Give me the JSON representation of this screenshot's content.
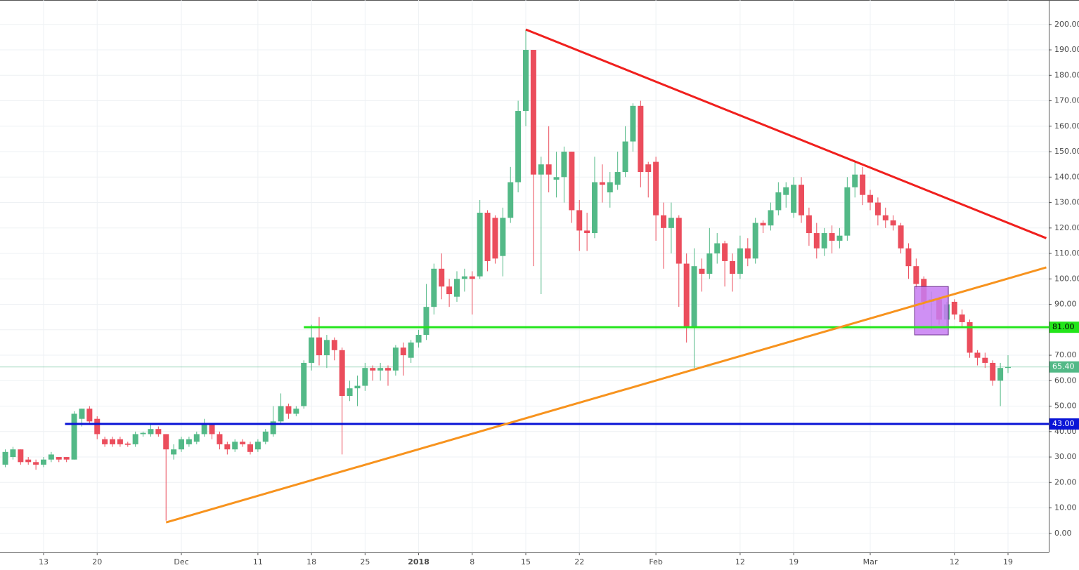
{
  "chart_data": {
    "type": "candlestick",
    "up_color": "#53b987",
    "down_color": "#eb4d5c",
    "grid": true,
    "ylim": [
      -7.5,
      209.6
    ],
    "yticks": [
      {
        "value": 0,
        "label": "0.00"
      },
      {
        "value": 10,
        "label": "10.00"
      },
      {
        "value": 20,
        "label": "20.00"
      },
      {
        "value": 30,
        "label": "30.00"
      },
      {
        "value": 40,
        "label": "40.00"
      },
      {
        "value": 50,
        "label": "50.00"
      },
      {
        "value": 60,
        "label": "60.00"
      },
      {
        "value": 70,
        "label": "70.00"
      },
      {
        "value": 80,
        "label": "80.00"
      },
      {
        "value": 90,
        "label": "90.00"
      },
      {
        "value": 100,
        "label": "100.00"
      },
      {
        "value": 110,
        "label": "110.00"
      },
      {
        "value": 120,
        "label": "120.00"
      },
      {
        "value": 130,
        "label": "130.00"
      },
      {
        "value": 140,
        "label": "140.00"
      },
      {
        "value": 150,
        "label": "150.00"
      },
      {
        "value": 160,
        "label": "160.00"
      },
      {
        "value": 170,
        "label": "170.00"
      },
      {
        "value": 180,
        "label": "180.00"
      },
      {
        "value": 190,
        "label": "190.00"
      },
      {
        "value": 200,
        "label": "200.00"
      }
    ],
    "categories": [
      null,
      null,
      null,
      null,
      null,
      "13",
      null,
      null,
      null,
      null,
      null,
      null,
      "20",
      null,
      null,
      null,
      null,
      null,
      null,
      null,
      null,
      null,
      null,
      "Dec",
      null,
      null,
      null,
      null,
      null,
      null,
      null,
      null,
      null,
      "11",
      null,
      null,
      null,
      null,
      null,
      null,
      "18",
      null,
      null,
      null,
      null,
      null,
      null,
      "25",
      null,
      null,
      null,
      null,
      null,
      null,
      "2018",
      null,
      null,
      null,
      null,
      null,
      null,
      "8",
      null,
      null,
      null,
      null,
      null,
      null,
      "15",
      null,
      null,
      null,
      null,
      null,
      null,
      "22",
      null,
      null,
      null,
      null,
      null,
      null,
      null,
      null,
      null,
      "Feb",
      null,
      null,
      null,
      null,
      null,
      null,
      null,
      null,
      null,
      null,
      "12",
      null,
      null,
      null,
      null,
      null,
      null,
      "19",
      null,
      null,
      null,
      null,
      null,
      null,
      null,
      null,
      null,
      "Mar",
      null,
      null,
      null,
      null,
      null,
      null,
      null,
      null,
      null,
      null,
      "12",
      null,
      null,
      null,
      null,
      null,
      null,
      "19"
    ],
    "open": [
      27,
      30,
      33,
      29,
      28,
      27,
      29,
      30,
      30,
      29,
      45,
      49,
      45,
      37,
      37,
      37,
      35.3,
      35,
      39,
      39,
      41,
      39,
      31,
      33,
      35,
      36,
      39,
      43,
      39,
      35,
      33,
      36,
      35,
      33,
      36,
      39,
      44,
      50,
      47,
      50,
      67,
      77,
      70,
      76,
      72,
      54,
      57,
      58,
      65,
      64,
      65,
      64,
      73,
      69,
      75,
      78,
      89,
      104,
      97,
      93,
      100,
      101,
      101,
      126,
      124,
      109,
      124,
      138,
      166,
      190,
      141,
      145,
      139,
      140,
      150,
      127,
      119,
      118,
      138,
      134,
      137,
      142,
      154,
      168,
      145,
      146,
      125,
      120,
      124,
      106,
      81,
      104,
      102,
      110,
      114,
      107,
      102,
      112,
      108,
      122,
      121,
      127,
      133,
      126,
      137,
      125,
      118,
      112,
      118,
      115,
      117,
      136,
      141,
      133,
      130,
      125,
      123,
      121,
      112,
      105,
      100,
      91,
      92,
      84,
      91,
      86,
      83,
      71,
      69,
      67,
      60,
      65
    ],
    "high": [
      33,
      34,
      33,
      30,
      29,
      30,
      32,
      30,
      30,
      48,
      49,
      50,
      46,
      38,
      38,
      38,
      36,
      40,
      40,
      43,
      42,
      39,
      35,
      38,
      38,
      40,
      45,
      43,
      40,
      36,
      37,
      37,
      36,
      37,
      41,
      50,
      55,
      51,
      50,
      68,
      82,
      85,
      78,
      77,
      73,
      60,
      62,
      67,
      66,
      67,
      66,
      74,
      75,
      76,
      80,
      98,
      106,
      110,
      100,
      103,
      104,
      103,
      131,
      127,
      125,
      128,
      144,
      170,
      198,
      190,
      148,
      160,
      150,
      152,
      150,
      131,
      126,
      148,
      145,
      142,
      150,
      160,
      169,
      170,
      146,
      148,
      130,
      130,
      125,
      110,
      112,
      108,
      120,
      118,
      115,
      110,
      117,
      116,
      124,
      123,
      130,
      138,
      138,
      140,
      140,
      128,
      122,
      120,
      121,
      120,
      140,
      146,
      144,
      135,
      132,
      128,
      125,
      122,
      114,
      108,
      101,
      95,
      93,
      91,
      92,
      88,
      84,
      72,
      71,
      68,
      67,
      70
    ],
    "low": [
      26,
      29,
      27,
      27,
      25,
      26,
      28,
      28,
      28,
      29,
      42,
      43,
      37,
      34,
      34,
      34,
      34,
      34,
      38,
      38,
      38,
      5,
      29,
      32,
      34,
      35,
      38,
      37,
      33,
      31,
      32,
      34,
      31,
      32,
      35,
      38,
      43,
      45,
      46,
      49,
      64,
      66,
      65,
      68,
      31,
      52,
      50,
      56,
      60,
      60,
      58,
      62,
      62,
      67,
      73,
      76,
      86,
      92,
      89,
      91,
      95,
      86,
      100,
      103,
      106,
      101,
      122,
      134,
      160,
      105,
      94,
      134,
      132,
      130,
      122,
      111,
      111,
      116,
      130,
      128,
      135,
      140,
      150,
      136,
      132,
      115,
      104,
      110,
      89,
      75,
      65,
      95,
      100,
      106,
      97,
      95,
      100,
      105,
      106,
      118,
      119,
      125,
      128,
      124,
      122,
      113,
      108,
      109,
      110,
      112,
      115,
      132,
      129,
      127,
      121,
      120,
      119,
      110,
      100,
      96,
      88,
      80,
      82,
      81,
      84,
      81,
      69,
      66,
      65,
      58,
      50,
      63
    ],
    "close": [
      32,
      33,
      28,
      28,
      27,
      29,
      31,
      29,
      29,
      47,
      49,
      44,
      39,
      35,
      35,
      35,
      34.8,
      39,
      39.5,
      41,
      39,
      33,
      33,
      37,
      37,
      39,
      43,
      39,
      35,
      33,
      36,
      35,
      32,
      36,
      40,
      44,
      50,
      47,
      49,
      67,
      77,
      70,
      76,
      72,
      54,
      57,
      58,
      65,
      64,
      65,
      64,
      73,
      70,
      75,
      78,
      89,
      104,
      97,
      94,
      100,
      101,
      100,
      126,
      107,
      108,
      124,
      138,
      166,
      190,
      141,
      145,
      141,
      140,
      150,
      127,
      119,
      118,
      138,
      137,
      138,
      142,
      154,
      168,
      142,
      142,
      125,
      120,
      124,
      106,
      81,
      105,
      102,
      110,
      114,
      107,
      102,
      112,
      108,
      122,
      121,
      127,
      134,
      136,
      137,
      125,
      118,
      112,
      118,
      115,
      117,
      136,
      141,
      133,
      130,
      125,
      123,
      121,
      112,
      105,
      98,
      91,
      92,
      84,
      90,
      86,
      83,
      71,
      69,
      67,
      60,
      65,
      65.4
    ],
    "trendlines": [
      {
        "color": "#f0201e",
        "points": [
          [
            68,
            198
          ],
          [
            136,
            116
          ]
        ]
      },
      {
        "color": "#f7931e",
        "points": [
          [
            21,
            4.3
          ],
          [
            136,
            104.5
          ]
        ]
      }
    ],
    "hlines": [
      {
        "value": 81,
        "label": "81.00",
        "color": "#22e51a",
        "from": 39
      },
      {
        "value": 43,
        "label": "43.00",
        "color": "#0a14d6",
        "from": 7.8
      }
    ],
    "last_price": {
      "value": 65.4,
      "label": "65.40",
      "color": "#53b987"
    },
    "box": {
      "x": [
        118.8,
        123.2
      ],
      "y": [
        78,
        97
      ],
      "color": "#c77df2"
    }
  }
}
